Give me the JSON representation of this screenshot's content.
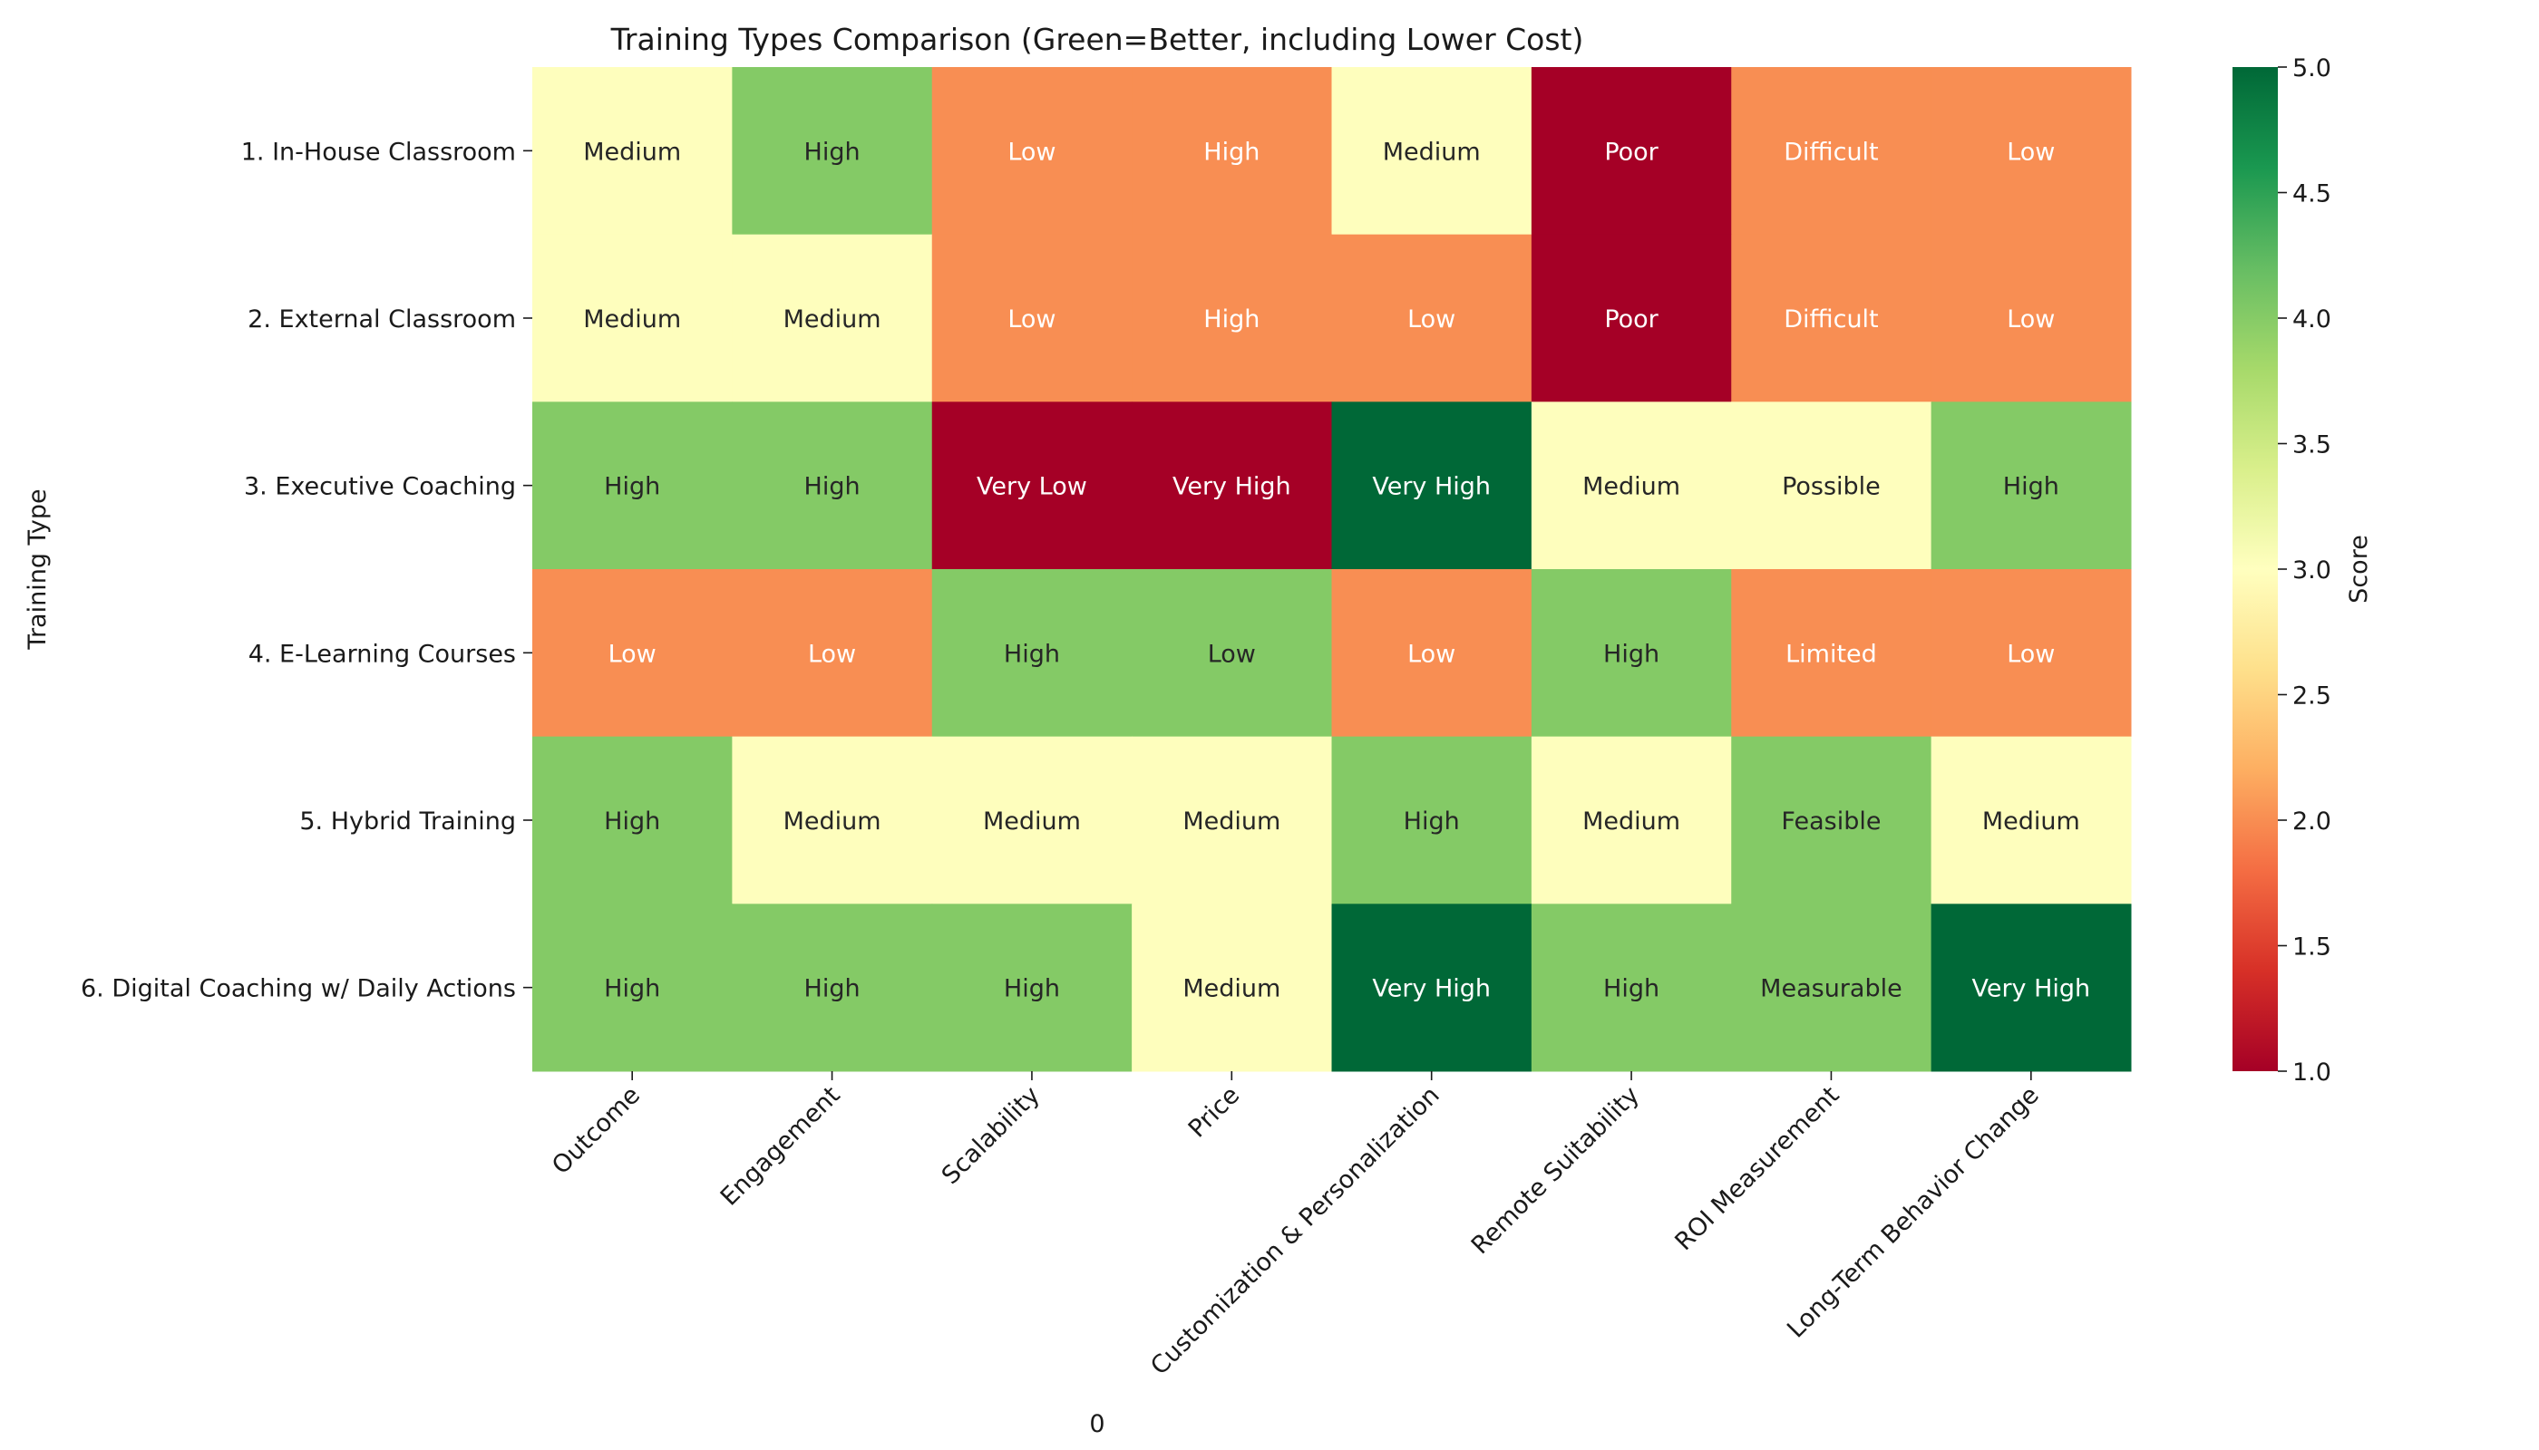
{
  "chart_data": {
    "type": "heatmap",
    "title": "Training Types Comparison (Green=Better, including Lower Cost)",
    "xlabel": "0",
    "ylabel": "Training Type",
    "colorbar": {
      "label": "Score",
      "range": [
        1.0,
        5.0
      ],
      "ticks": [
        "1.0",
        "1.5",
        "2.0",
        "2.5",
        "3.0",
        "3.5",
        "4.0",
        "4.5",
        "5.0"
      ],
      "colormap": "RdYlGn"
    },
    "columns": [
      "Outcome",
      "Engagement",
      "Scalability",
      "Price",
      "Customization & Personalization",
      "Remote Suitability",
      "ROI Measurement",
      "Long-Term Behavior Change"
    ],
    "rows": [
      "1. In-House Classroom",
      "2. External Classroom",
      "3. Executive Coaching",
      "4. E-Learning Courses",
      "5. Hybrid Training",
      "6. Digital Coaching w/ Daily Actions"
    ],
    "scores": [
      [
        3,
        4,
        2,
        2,
        3,
        1,
        2,
        2
      ],
      [
        3,
        3,
        2,
        2,
        2,
        1,
        2,
        2
      ],
      [
        4,
        4,
        1,
        1,
        5,
        3,
        3,
        4
      ],
      [
        2,
        2,
        4,
        4,
        2,
        4,
        2,
        2
      ],
      [
        4,
        3,
        3,
        3,
        4,
        3,
        4,
        3
      ],
      [
        4,
        4,
        4,
        3,
        5,
        4,
        4,
        5
      ]
    ],
    "labels": [
      [
        "Medium",
        "High",
        "Low",
        "High",
        "Medium",
        "Poor",
        "Difficult",
        "Low"
      ],
      [
        "Medium",
        "Medium",
        "Low",
        "High",
        "Low",
        "Poor",
        "Difficult",
        "Low"
      ],
      [
        "High",
        "High",
        "Very Low",
        "Very High",
        "Very High",
        "Medium",
        "Possible",
        "High"
      ],
      [
        "Low",
        "Low",
        "High",
        "Low",
        "Low",
        "High",
        "Limited",
        "Low"
      ],
      [
        "High",
        "Medium",
        "Medium",
        "Medium",
        "High",
        "Medium",
        "Feasible",
        "Medium"
      ],
      [
        "High",
        "High",
        "High",
        "Medium",
        "Very High",
        "High",
        "Measurable",
        "Very High"
      ]
    ],
    "score_colors": {
      "1": "#a50026",
      "2": "#f88e53",
      "3": "#fefebd",
      "4": "#84ca66",
      "5": "#006837"
    },
    "legend": "colorbar-right"
  }
}
